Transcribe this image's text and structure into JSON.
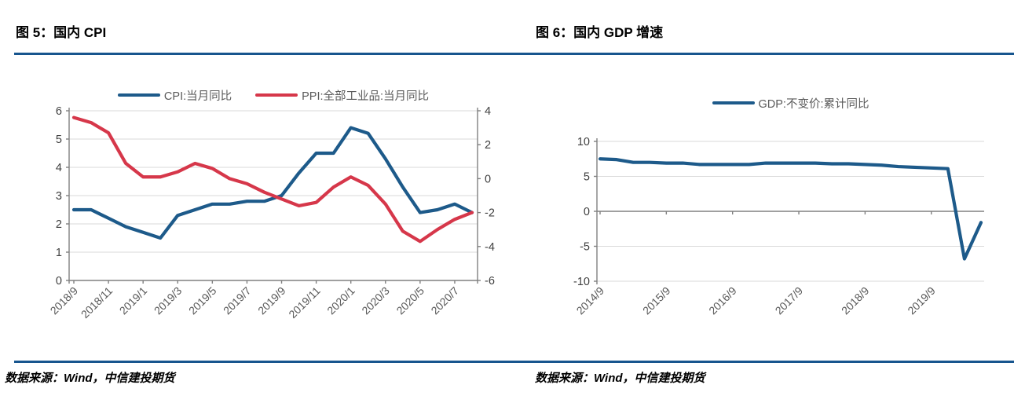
{
  "figures": [
    {
      "title": "图 5：国内 CPI",
      "source": "数据来源：Wind，中信建投期货"
    },
    {
      "title": "图 6：国内 GDP 增速",
      "source": "数据来源：Wind，中信建投期货"
    }
  ],
  "colors": {
    "rule_blue": "#17558e",
    "series_blue": "#1d5a8a",
    "series_red": "#d6374a",
    "grid": "#d9d9d9",
    "axis": "#808080",
    "x_tick_label": "#595959",
    "y_tick_label": "#404040",
    "legend_text": "#595959",
    "background": "#ffffff"
  },
  "chart_data": [
    {
      "type": "line",
      "title": "图 5：国内 CPI",
      "xlabel": "",
      "ylabel": "",
      "categories": [
        "2018/9",
        "2018/10",
        "2018/11",
        "2018/12",
        "2019/1",
        "2019/2",
        "2019/3",
        "2019/4",
        "2019/5",
        "2019/6",
        "2019/7",
        "2019/8",
        "2019/9",
        "2019/10",
        "2019/11",
        "2019/12",
        "2020/1",
        "2020/2",
        "2020/3",
        "2020/4",
        "2020/5",
        "2020/6",
        "2020/7",
        "2020/8"
      ],
      "x_tick_every": 2,
      "left_axis": {
        "min": 0,
        "max": 6,
        "step": 1,
        "ticks": [
          0,
          1,
          2,
          3,
          4,
          5,
          6
        ]
      },
      "right_axis": {
        "min": -6,
        "max": 4,
        "step": 2,
        "ticks": [
          -6,
          -4,
          -2,
          0,
          2,
          4
        ]
      },
      "zero_at": 0,
      "grid": true,
      "legend_position": "top",
      "series": [
        {
          "name": "CPI:当月同比",
          "axis": "left",
          "color": "#1d5a8a",
          "values": [
            2.5,
            2.5,
            2.2,
            1.9,
            1.7,
            1.5,
            2.3,
            2.5,
            2.7,
            2.7,
            2.8,
            2.8,
            3.0,
            3.8,
            4.5,
            4.5,
            5.4,
            5.2,
            4.3,
            3.3,
            2.4,
            2.5,
            2.7,
            2.4
          ]
        },
        {
          "name": "PPI:全部工业品:当月同比",
          "axis": "right",
          "color": "#d6374a",
          "values": [
            3.6,
            3.3,
            2.7,
            0.9,
            0.1,
            0.1,
            0.4,
            0.9,
            0.6,
            0.0,
            -0.3,
            -0.8,
            -1.2,
            -1.6,
            -1.4,
            -0.5,
            0.1,
            -0.4,
            -1.5,
            -3.1,
            -3.7,
            -3.0,
            -2.4,
            -2.0
          ]
        }
      ]
    },
    {
      "type": "line",
      "title": "图 6：国内 GDP 增速",
      "xlabel": "",
      "ylabel": "",
      "categories": [
        "2014/9",
        "2014/12",
        "2015/3",
        "2015/6",
        "2015/9",
        "2015/12",
        "2016/3",
        "2016/6",
        "2016/9",
        "2016/12",
        "2017/3",
        "2017/6",
        "2017/9",
        "2017/12",
        "2018/3",
        "2018/6",
        "2018/9",
        "2018/12",
        "2019/3",
        "2019/6",
        "2019/9",
        "2019/12",
        "2020/3",
        "2020/6"
      ],
      "x_tick_every": 4,
      "left_axis": {
        "min": -10,
        "max": 10,
        "step": 5,
        "ticks": [
          -10,
          -5,
          0,
          5,
          10
        ]
      },
      "zero_at": 0,
      "grid": true,
      "legend_position": "top",
      "series": [
        {
          "name": "GDP:不变价:累计同比",
          "axis": "left",
          "color": "#1d5a8a",
          "values": [
            7.5,
            7.4,
            7.0,
            7.0,
            6.9,
            6.9,
            6.7,
            6.7,
            6.7,
            6.7,
            6.9,
            6.9,
            6.9,
            6.9,
            6.8,
            6.8,
            6.7,
            6.6,
            6.4,
            6.3,
            6.2,
            6.1,
            -6.8,
            -1.6
          ]
        }
      ]
    }
  ]
}
